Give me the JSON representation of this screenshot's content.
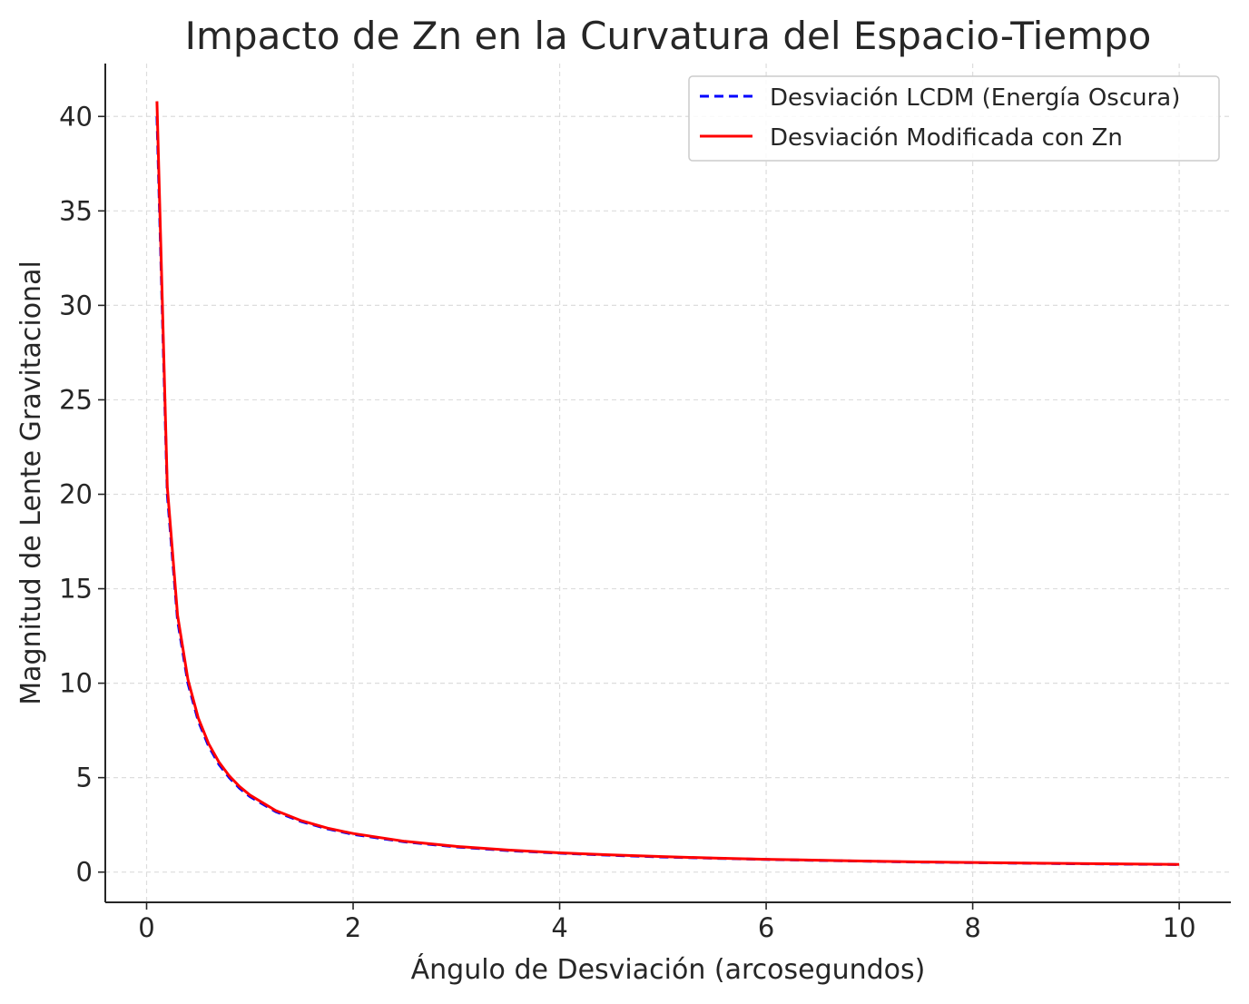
{
  "chart_data": {
    "type": "line",
    "title": "Impacto de Zn en la Curvatura del Espacio-Tiempo",
    "xlabel": "Ángulo de Desviación (arcosegundos)",
    "ylabel": "Magnitud de Lente Gravitacional",
    "xlim": [
      -0.4,
      10.5
    ],
    "ylim": [
      -1.6,
      42.8
    ],
    "xticks": [
      0,
      2,
      4,
      6,
      8,
      10
    ],
    "yticks": [
      0,
      5,
      10,
      15,
      20,
      25,
      30,
      35,
      40
    ],
    "grid": true,
    "legend_position": "top-right",
    "x": [
      0.1,
      0.2,
      0.3,
      0.4,
      0.5,
      0.6,
      0.7,
      0.8,
      0.9,
      1.0,
      1.25,
      1.5,
      1.75,
      2.0,
      2.5,
      3.0,
      3.5,
      4.0,
      4.5,
      5.0,
      5.5,
      6.0,
      6.5,
      7.0,
      7.5,
      8.0,
      8.5,
      9.0,
      9.5,
      10.0
    ],
    "series": [
      {
        "name": "Desviación LCDM (Energía Oscura)",
        "color": "#0000ff",
        "style": "dashed",
        "values": [
          40.0,
          20.0,
          13.33,
          10.0,
          8.0,
          6.67,
          5.71,
          5.0,
          4.44,
          4.0,
          3.2,
          2.67,
          2.29,
          2.0,
          1.6,
          1.33,
          1.14,
          1.0,
          0.89,
          0.8,
          0.73,
          0.67,
          0.62,
          0.57,
          0.53,
          0.5,
          0.47,
          0.44,
          0.42,
          0.4
        ]
      },
      {
        "name": "Desviación Modificada con Zn",
        "color": "#ff0000",
        "style": "solid",
        "values": [
          40.8,
          20.4,
          13.6,
          10.2,
          8.16,
          6.8,
          5.83,
          5.1,
          4.53,
          4.08,
          3.26,
          2.72,
          2.33,
          2.04,
          1.63,
          1.36,
          1.17,
          1.02,
          0.91,
          0.82,
          0.74,
          0.68,
          0.63,
          0.58,
          0.54,
          0.51,
          0.48,
          0.45,
          0.43,
          0.41
        ]
      }
    ]
  }
}
